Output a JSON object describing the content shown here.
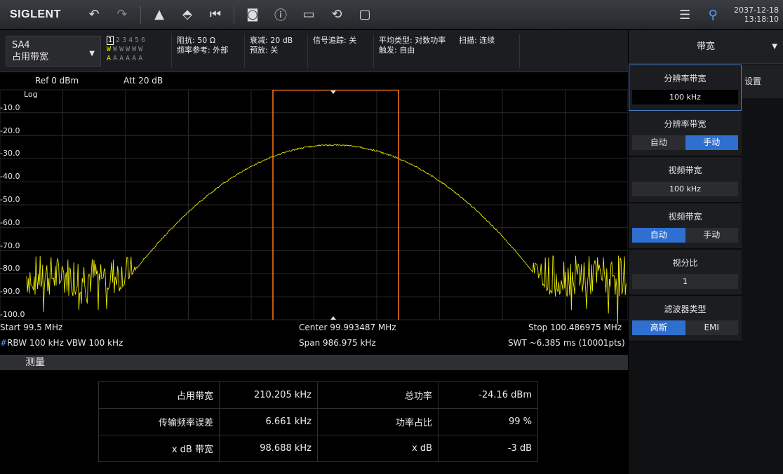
{
  "toolbar": {
    "logo": "SIGLENT",
    "datetime_date": "2037-12-18",
    "datetime_time": "13:18:10"
  },
  "mode": {
    "line1": "SA4",
    "line2": "占用带宽"
  },
  "traces": {
    "numbers": [
      "1",
      "2",
      "3",
      "4",
      "5",
      "6"
    ],
    "types": [
      "W",
      "W",
      "W",
      "W",
      "W",
      "W"
    ],
    "modes": [
      "A",
      "A",
      "A",
      "A",
      "A",
      "A"
    ]
  },
  "info": {
    "impedance": "阻抗: 50 Ω",
    "freq_ref": "频率参考: 外部",
    "atten": "衰减: 20 dB",
    "preamp": "预放: 关",
    "tracking": "信号追踪: 关",
    "avg_type": "平均类型: 对数功率",
    "trigger": "触发: 自由",
    "sweep": "扫描: 连续"
  },
  "plot": {
    "ref": "Ref  0 dBm",
    "att": "Att  20 dB",
    "scale": "Log",
    "y_labels": [
      "-10.0",
      "-20.0",
      "-30.0",
      "-40.0",
      "-50.0",
      "-60.0",
      "-70.0",
      "-80.0",
      "-90.0",
      "-100.0"
    ],
    "start": "Start  99.5 MHz",
    "center": "Center  99.993487 MHz",
    "stop": "Stop  100.486975 MHz",
    "rbw_mark": "#",
    "rbw": "RBW  100 kHz   VBW  100 kHz",
    "span": "Span  986.975 kHz",
    "swt": "SWT  ~6.385 ms (10001pts)",
    "trace_color": "#e8e800",
    "marker_color": "#ff7a1a"
  },
  "measure": {
    "title": "测量",
    "rows": [
      {
        "l1": "占用带宽",
        "v1": "210.205 kHz",
        "l2": "总功率",
        "v2": "-24.16 dBm"
      },
      {
        "l1": "传输频率误差",
        "v1": "6.661 kHz",
        "l2": "功率占比",
        "v2": "99 %"
      },
      {
        "l1": "x dB 带宽",
        "v1": "98.688 kHz",
        "l2": "x dB",
        "v2": "-3 dB"
      }
    ]
  },
  "panel": {
    "title": "带宽",
    "tab": "设置",
    "rbw_label": "分辨率带宽",
    "rbw_value": "100 kHz",
    "rbw_mode_label": "分辨率带宽",
    "auto": "自动",
    "manual": "手动",
    "vbw_label": "视频带宽",
    "vbw_value": "100 kHz",
    "vbw_mode_label": "视频带宽",
    "ratio_label": "视分比",
    "ratio_value": "1",
    "filter_label": "滤波器类型",
    "filter_gauss": "高斯",
    "filter_emi": "EMI"
  }
}
